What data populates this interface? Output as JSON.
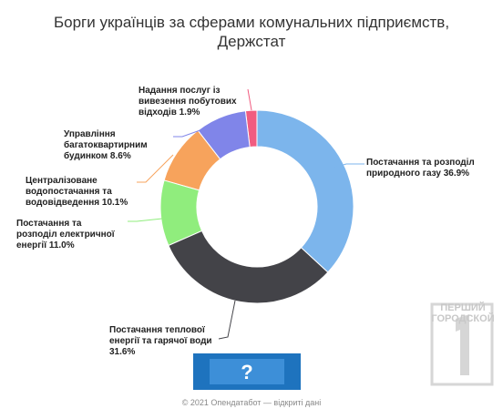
{
  "chart_data": {
    "type": "donut",
    "title": "Борги українців за сферами комунальних підприємств, Держстат",
    "categories": [
      "Постачання та розподіл природного газу",
      "Постачання теплової енергії та гарячої води",
      "Постачання та розподіл електричної енергії",
      "Централізоване водопостачання та водовідведення",
      "Управління багатоквартирним будинком",
      "Надання послуг із вивезення побутових відходів"
    ],
    "values": [
      36.9,
      31.6,
      11.0,
      10.1,
      8.6,
      1.9
    ],
    "value_labels": [
      "36.9%",
      "31.6%",
      "11.0%",
      "10.1%",
      "8.6%",
      "1.9%"
    ],
    "colors": [
      "#7cb5ec",
      "#434348",
      "#90ed7d",
      "#f7a35c",
      "#8085e9",
      "#f15c80"
    ],
    "source": "© 2021 Опендатабот — відкриті дані"
  },
  "watermark": [
    "ПЕРШИЙ",
    "ГОРОДСКОЙ"
  ]
}
